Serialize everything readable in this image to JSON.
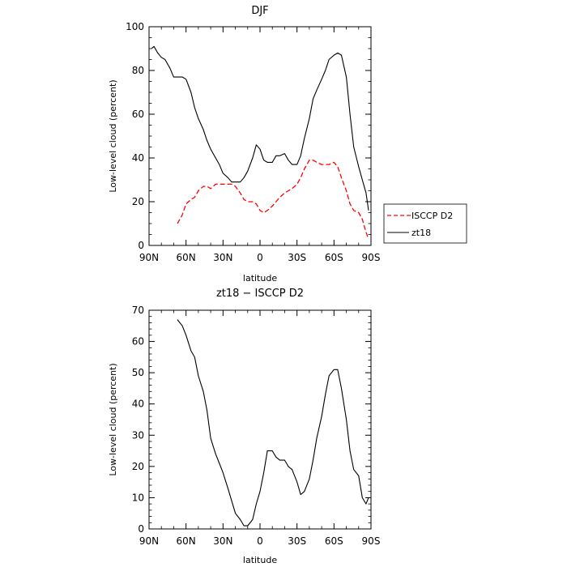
{
  "chart_data": [
    {
      "type": "line",
      "title": "DJF",
      "xlabel": "latitude",
      "ylabel": "Low-level cloud (percent)",
      "xlim": [
        90,
        -90
      ],
      "ylim": [
        0,
        100
      ],
      "x_tick_labels": [
        "90N",
        "60N",
        "30N",
        "0",
        "30S",
        "60S",
        "90S"
      ],
      "y_tick_labels": [
        "0",
        "20",
        "40",
        "60",
        "80",
        "100"
      ],
      "legend_position": "outside-right",
      "series": [
        {
          "name": "ISCCP D2",
          "color": "#ff0000",
          "dashed": true,
          "x": [
            67,
            63,
            60,
            56,
            53,
            50,
            46,
            43,
            40,
            36,
            33,
            30,
            26,
            23,
            20,
            16,
            13,
            10,
            6,
            3,
            0,
            -3,
            -6,
            -10,
            -13,
            -16,
            -20,
            -23,
            -26,
            -30,
            -33,
            -36,
            -40,
            -43,
            -46,
            -50,
            -53,
            -56,
            -60,
            -63,
            -66,
            -70,
            -73,
            -76,
            -80,
            -83,
            -86,
            -88
          ],
          "y": [
            10,
            14,
            19,
            21,
            22,
            25,
            27,
            27,
            26,
            28,
            28,
            28,
            28,
            28,
            27,
            24,
            21,
            20,
            20,
            19,
            16,
            15,
            16,
            18,
            20,
            22,
            24,
            25,
            26,
            28,
            31,
            35,
            39,
            39,
            38,
            37,
            37,
            37,
            38,
            36,
            31,
            25,
            19,
            16,
            15,
            12,
            6,
            3
          ]
        },
        {
          "name": "zt18",
          "color": "#000000",
          "dashed": false,
          "x": [
            88,
            86,
            83,
            80,
            77,
            73,
            70,
            67,
            63,
            60,
            56,
            53,
            50,
            46,
            43,
            40,
            36,
            33,
            30,
            26,
            23,
            20,
            16,
            13,
            10,
            6,
            3,
            0,
            -3,
            -6,
            -10,
            -13,
            -16,
            -20,
            -23,
            -26,
            -30,
            -33,
            -36,
            -40,
            -43,
            -46,
            -50,
            -53,
            -56,
            -60,
            -63,
            -66,
            -70,
            -73,
            -76,
            -80,
            -83,
            -86,
            -88
          ],
          "y": [
            90,
            91,
            88,
            86,
            85,
            81,
            77,
            77,
            77,
            76,
            70,
            63,
            58,
            53,
            48,
            44,
            40,
            37,
            33,
            31,
            29,
            29,
            29,
            31,
            34,
            40,
            46,
            44,
            39,
            38,
            38,
            41,
            41,
            42,
            39,
            37,
            37,
            41,
            49,
            58,
            67,
            71,
            76,
            80,
            85,
            87,
            88,
            87,
            77,
            60,
            45,
            36,
            30,
            24,
            16
          ]
        }
      ]
    },
    {
      "type": "line",
      "title": "zt18 − ISCCP D2",
      "xlabel": "latitude",
      "ylabel": "Low-level cloud (percent)",
      "xlim": [
        90,
        -90
      ],
      "ylim": [
        0,
        70
      ],
      "x_tick_labels": [
        "90N",
        "60N",
        "30N",
        "0",
        "30S",
        "60S",
        "90S"
      ],
      "y_tick_labels": [
        "0",
        "10",
        "20",
        "30",
        "40",
        "50",
        "60",
        "70"
      ],
      "series": [
        {
          "color": "#000000",
          "dashed": false,
          "x": [
            67,
            63,
            60,
            56,
            53,
            50,
            46,
            43,
            40,
            36,
            33,
            30,
            26,
            23,
            20,
            16,
            13,
            10,
            6,
            3,
            0,
            -3,
            -6,
            -10,
            -13,
            -16,
            -20,
            -23,
            -26,
            -30,
            -33,
            -36,
            -40,
            -43,
            -46,
            -50,
            -53,
            -56,
            -60,
            -63,
            -66,
            -70,
            -73,
            -76,
            -80,
            -83,
            -86,
            -88
          ],
          "y": [
            67,
            65,
            62,
            57,
            55,
            49,
            44,
            38,
            29,
            24,
            21,
            18,
            13,
            9,
            5,
            3,
            1,
            1,
            3,
            8,
            12,
            18,
            25,
            25,
            23,
            22,
            22,
            20,
            19,
            15,
            11,
            12,
            16,
            22,
            29,
            36,
            43,
            49,
            51,
            51,
            45,
            35,
            25,
            19,
            17,
            10,
            8,
            10
          ]
        }
      ]
    }
  ]
}
